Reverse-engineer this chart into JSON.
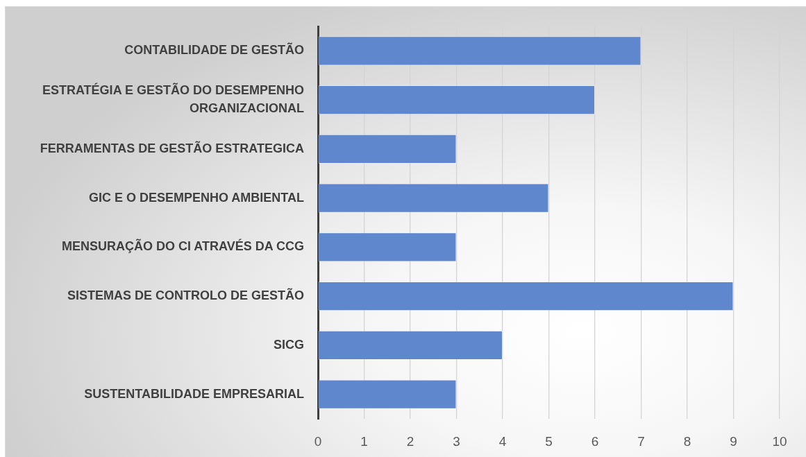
{
  "chart_data": {
    "type": "bar",
    "orientation": "horizontal",
    "categories": [
      "CONTABILIDADE DE GESTÃO",
      "ESTRATÉGIA E GESTÃO DO DESEMPENHO ORGANIZACIONAL",
      "FERRAMENTAS DE GESTÃO ESTRATEGICA",
      "GIC E O DESEMPENHO AMBIENTAL",
      "MENSURAÇÃO DO CI ATRAVÉS DA CCG",
      "SISTEMAS DE CONTROLO DE GESTÃO",
      "SICG",
      "SUSTENTABILIDADE EMPRESARIAL"
    ],
    "values": [
      7,
      6,
      3,
      5,
      3,
      9,
      4,
      3
    ],
    "color": "#5f87cd",
    "xlim": [
      0,
      10
    ],
    "xticks": [
      0,
      1,
      2,
      3,
      4,
      5,
      6,
      7,
      8,
      9,
      10
    ],
    "grid": "x"
  }
}
